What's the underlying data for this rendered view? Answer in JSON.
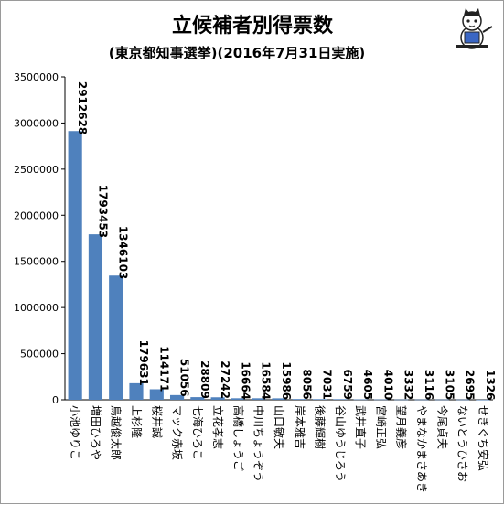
{
  "chart_data": {
    "type": "bar",
    "title": "立候補者別得票数",
    "subtitle": "(東京都知事選挙)(2016年7月31日実施)",
    "ylim": [
      0,
      3500000
    ],
    "yticks": [
      0,
      500000,
      1000000,
      1500000,
      2000000,
      2500000,
      3000000,
      3500000
    ],
    "grid": false,
    "bar_color": "#4f81bd",
    "categories": [
      "小池ゆりこ",
      "増田ひろや",
      "鳥越俊太郎",
      "上杉隆",
      "桜井誠",
      "マック赤坂",
      "七海ひろこ",
      "立花孝志",
      "高橋しょうご",
      "中川ちょうぞう",
      "山口敏夫",
      "岸本雅吉",
      "後藤輝樹",
      "谷山ゆうじろう",
      "武井直子",
      "宮崎正弘",
      "望月義彦",
      "やまなかまさあき",
      "今尾貞夫",
      "ないとうひさお",
      "せきぐち安弘"
    ],
    "values": [
      2912628,
      1793453,
      1346103,
      179631,
      114171,
      51056,
      28809,
      27242,
      16664,
      16584,
      15986,
      8056,
      7031,
      6759,
      4605,
      4010,
      3332,
      3116,
      3105,
      2695,
      1326
    ]
  }
}
